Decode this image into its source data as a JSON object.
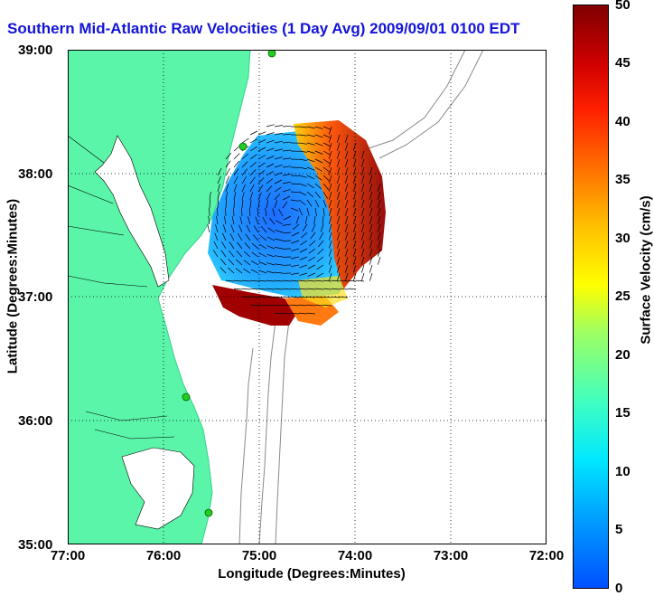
{
  "title": "Southern Mid-Atlantic Raw Velocities (1 Day Avg) 2009/09/01 0100 EDT",
  "axes": {
    "xlabel": "Longitude (Degrees:Minutes)",
    "ylabel": "Latitude (Degrees:Minutes)",
    "xticks": [
      "77:00",
      "76:00",
      "75:00",
      "74:00",
      "73:00",
      "72:00"
    ],
    "yticks": [
      "39:00",
      "38:00",
      "37:00",
      "36:00",
      "35:00"
    ],
    "grid": "dotted"
  },
  "colorbar": {
    "label": "Surface Velocity (cm/s)",
    "ticks": [
      "50",
      "45",
      "40",
      "35",
      "30",
      "25",
      "20",
      "15",
      "10",
      "5",
      "0"
    ]
  },
  "colors": {
    "title": "#1414d8",
    "land": "#5af5a8",
    "station": "#22cc22"
  }
}
